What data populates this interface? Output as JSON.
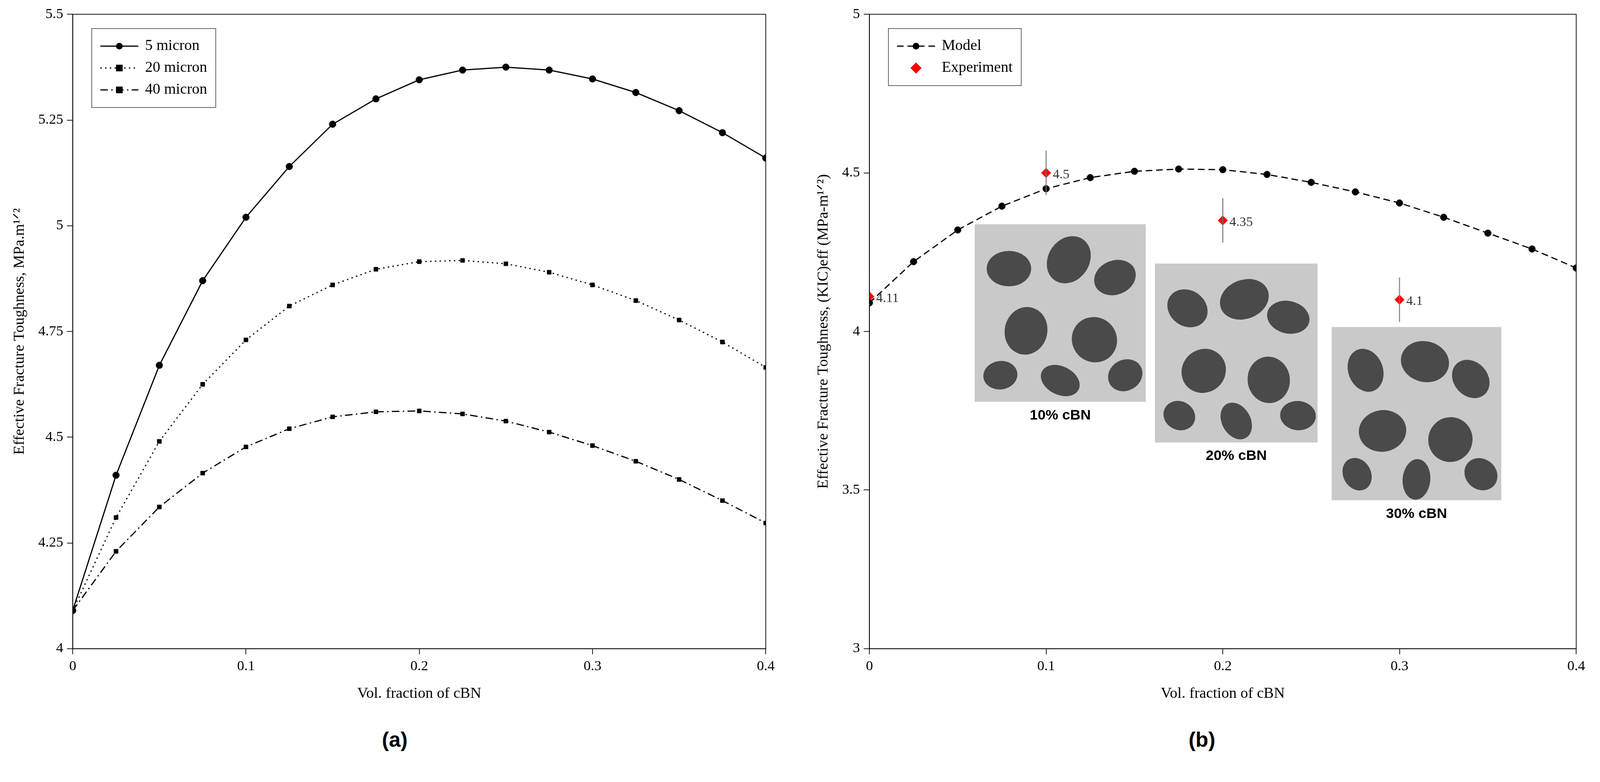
{
  "chart_data": [
    {
      "type": "line",
      "caption": "(a)",
      "x_label": "Vol. fraction of cBN",
      "y_label": "Effective Fracture Toughness, MPa.m¹ᐟ²",
      "x": [
        0,
        0.025,
        0.05,
        0.075,
        0.1,
        0.125,
        0.15,
        0.175,
        0.2,
        0.225,
        0.25,
        0.275,
        0.3,
        0.325,
        0.35,
        0.375,
        0.4
      ],
      "series": [
        {
          "name": "5 micron",
          "color": "#000000",
          "marker": "circle",
          "line_style": "solid",
          "values": [
            4.09,
            4.41,
            4.67,
            4.87,
            5.02,
            5.14,
            5.24,
            5.3,
            5.345,
            5.368,
            5.375,
            5.368,
            5.347,
            5.315,
            5.272,
            5.22,
            5.16
          ]
        },
        {
          "name": "20 micron",
          "color": "#000000",
          "marker": "square",
          "line_style": "dotted",
          "values": [
            4.09,
            4.31,
            4.49,
            4.625,
            4.73,
            4.81,
            4.86,
            4.897,
            4.915,
            4.918,
            4.91,
            4.89,
            4.86,
            4.823,
            4.777,
            4.725,
            4.665
          ]
        },
        {
          "name": "40 micron",
          "color": "#000000",
          "marker": "square",
          "line_style": "dashdot",
          "values": [
            4.09,
            4.23,
            4.335,
            4.415,
            4.477,
            4.52,
            4.548,
            4.56,
            4.562,
            4.555,
            4.538,
            4.512,
            4.48,
            4.443,
            4.4,
            4.35,
            4.297
          ]
        }
      ],
      "xlim": [
        0,
        0.4
      ],
      "xticks": [
        0,
        0.1,
        0.2,
        0.3,
        0.4
      ],
      "ylim": [
        4,
        5.5
      ],
      "yticks": [
        4,
        4.25,
        4.5,
        4.75,
        5,
        5.25,
        5.5
      ],
      "grid": false,
      "legend": "upper left"
    },
    {
      "type": "line",
      "caption": "(b)",
      "x_label": "Vol. fraction of cBN",
      "y_label": "Effective Fracture Toughness, (KIC)eff (MPa-m¹ᐟ²)",
      "series": [
        {
          "name": "Model",
          "color": "#000000",
          "marker": "circle",
          "line_style": "dashed",
          "x": [
            0,
            0.025,
            0.05,
            0.075,
            0.1,
            0.125,
            0.15,
            0.175,
            0.2,
            0.225,
            0.25,
            0.275,
            0.3,
            0.325,
            0.35,
            0.375,
            0.4
          ],
          "values": [
            4.09,
            4.22,
            4.32,
            4.395,
            4.45,
            4.485,
            4.505,
            4.512,
            4.51,
            4.495,
            4.47,
            4.44,
            4.405,
            4.36,
            4.31,
            4.26,
            4.2
          ]
        },
        {
          "name": "Experiment",
          "color": "#ff0000",
          "marker": "diamond",
          "type": "scatter",
          "data_labels": true,
          "x": [
            0,
            0.1,
            0.2,
            0.3
          ],
          "values": [
            4.11,
            4.5,
            4.35,
            4.1
          ],
          "errors": [
            0.07,
            0.07,
            0.07,
            0.07
          ]
        }
      ],
      "annotations": [
        "10% cBN",
        "20% cBN",
        "30% cBN"
      ],
      "xlim": [
        0,
        0.4
      ],
      "xticks": [
        0,
        0.1,
        0.2,
        0.3,
        0.4
      ],
      "ylim": [
        3,
        5
      ],
      "yticks": [
        3,
        3.5,
        4,
        4.5,
        5
      ],
      "grid": false,
      "legend": "upper left"
    }
  ]
}
